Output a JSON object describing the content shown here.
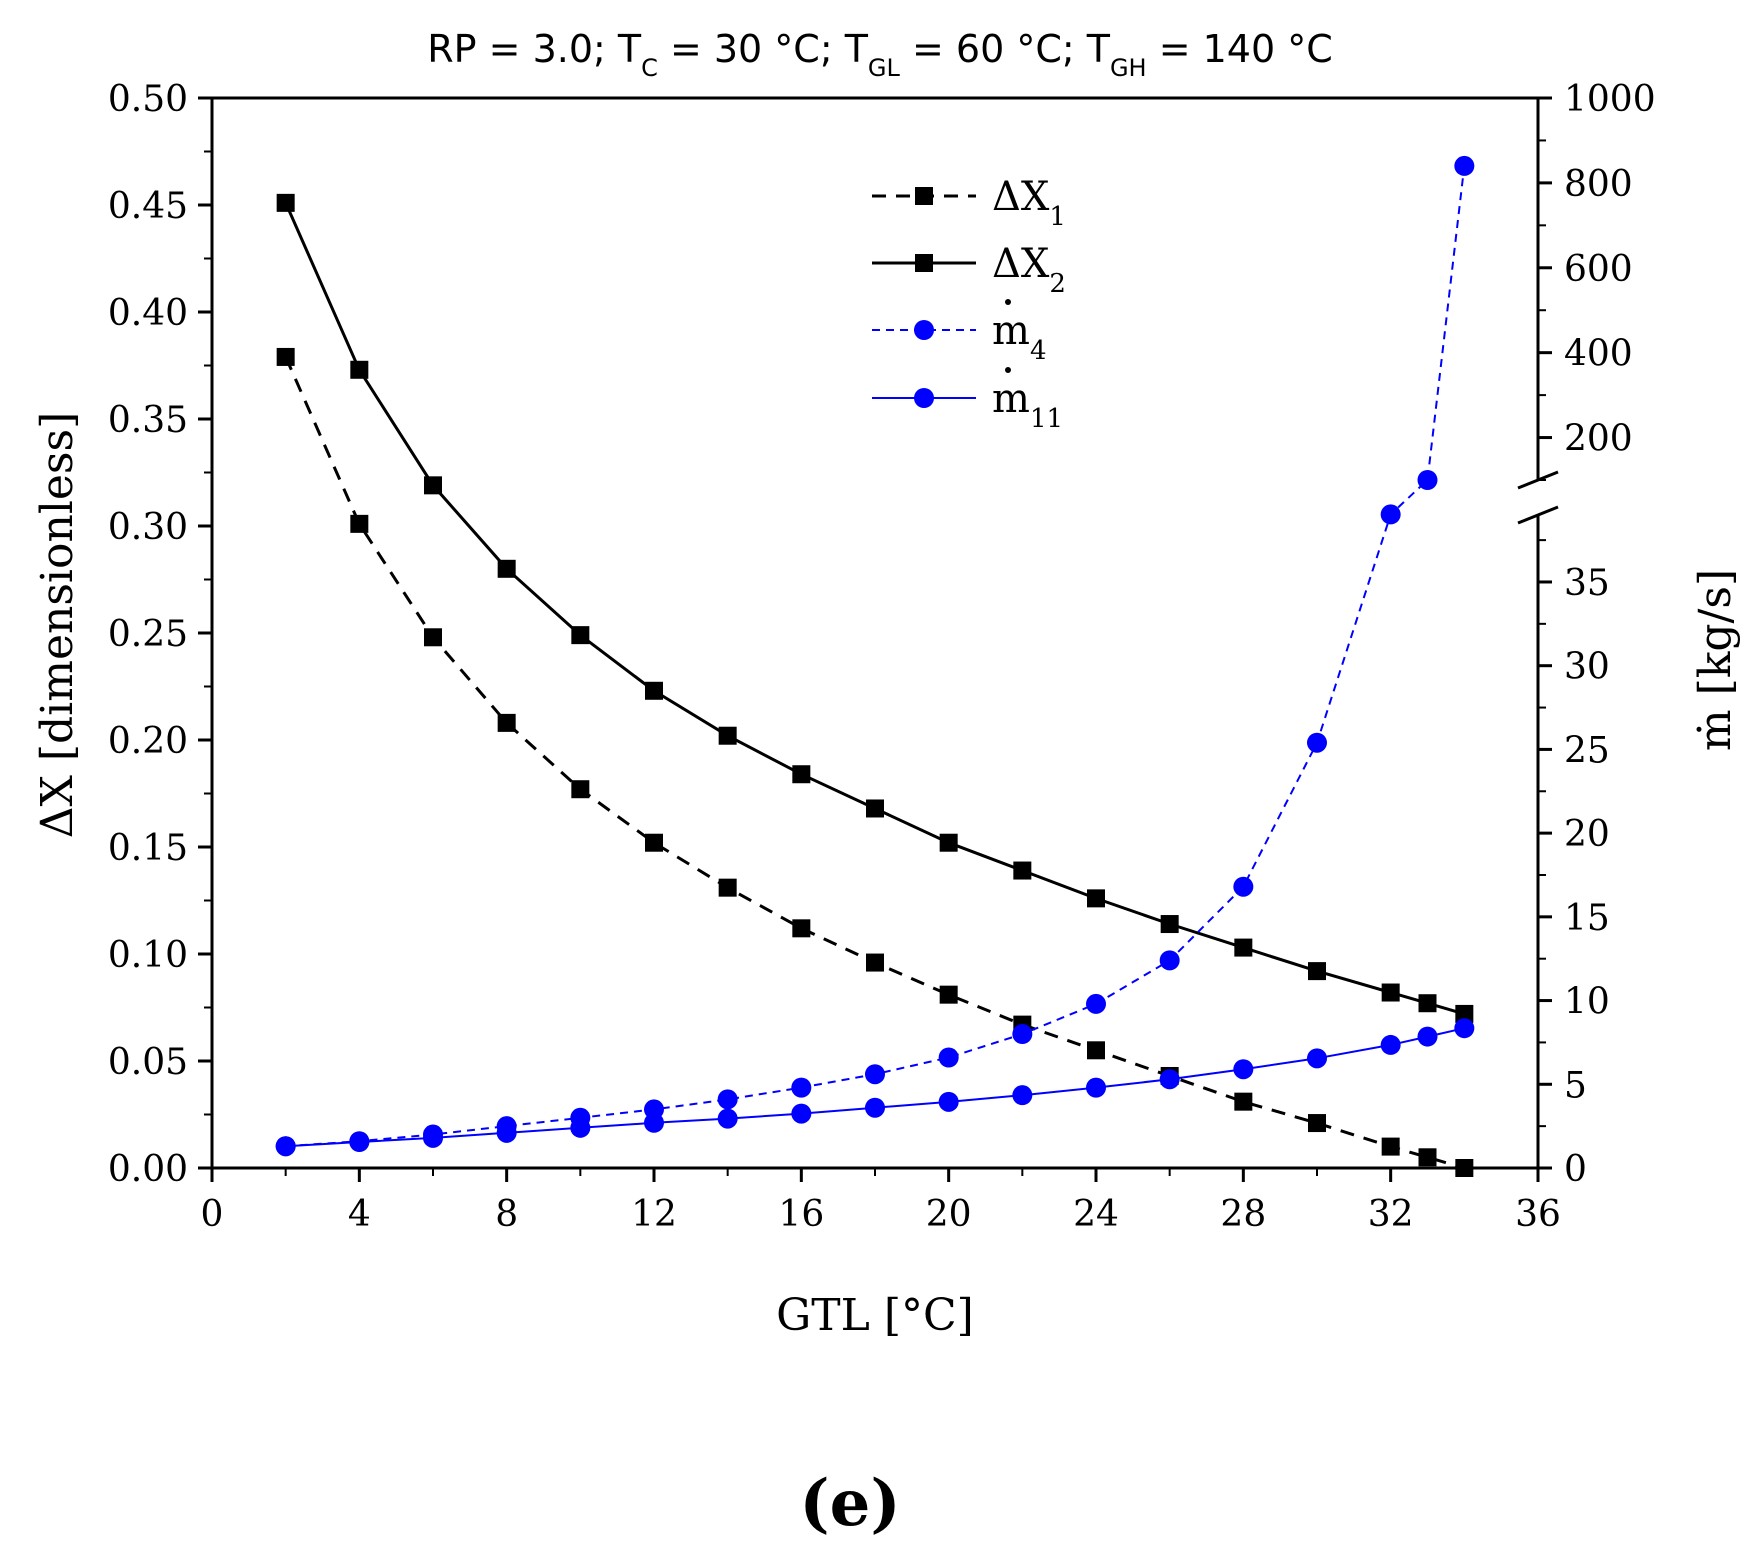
{
  "chart_data": {
    "type": "line",
    "title": {
      "parts": [
        {
          "text": "RP = 3.0; T",
          "sub": "C",
          "after": " = 30 °C; T"
        },
        {
          "text": "",
          "sub": "GL",
          "after": " = 60 °C; T"
        },
        {
          "text": "",
          "sub": "GH",
          "after": " = 140 °C"
        }
      ],
      "plain": "RP = 3.0; TC = 30 °C; TGL = 60 °C; TGH = 140 °C"
    },
    "xlabel": "GTL [°C]",
    "ylabel_left": "ΔX [dimensionless]",
    "ylabel_right": "ṁ [kg/s]",
    "panel_label": "(e)",
    "xlim": [
      0,
      36
    ],
    "xticks": [
      "0",
      "4",
      "8",
      "12",
      "16",
      "20",
      "24",
      "28",
      "32",
      "36"
    ],
    "xtick_values": [
      0,
      4,
      8,
      12,
      16,
      20,
      24,
      28,
      32,
      36
    ],
    "ylim_left": [
      0,
      0.5
    ],
    "yticks_left": [
      "0.00",
      "0.05",
      "0.10",
      "0.15",
      "0.20",
      "0.25",
      "0.30",
      "0.35",
      "0.40",
      "0.45",
      "0.50"
    ],
    "ytick_values_left": [
      0,
      0.05,
      0.1,
      0.15,
      0.2,
      0.25,
      0.3,
      0.35,
      0.4,
      0.45,
      0.5
    ],
    "right_axis_broken": true,
    "ylim_right_lower": [
      0,
      39
    ],
    "yticks_right_lower": [
      "0",
      "5",
      "10",
      "15",
      "20",
      "25",
      "30",
      "35"
    ],
    "ytick_values_right_lower": [
      0,
      5,
      10,
      15,
      20,
      25,
      30,
      35
    ],
    "ylim_right_upper": [
      100,
      1000
    ],
    "yticks_right_upper": [
      "200",
      "400",
      "600",
      "800",
      "1000"
    ],
    "ytick_values_right_upper": [
      200,
      400,
      600,
      800,
      1000
    ],
    "x": [
      2,
      4,
      6,
      8,
      10,
      12,
      14,
      16,
      18,
      20,
      22,
      24,
      26,
      28,
      30,
      32,
      33,
      34
    ],
    "series": [
      {
        "name": "ΔX1",
        "label_main": "ΔX",
        "label_sub": "1",
        "label_dot": false,
        "axis": "left",
        "color": "#000000",
        "marker": "square",
        "dash": "dashed",
        "values": [
          0.379,
          0.301,
          0.248,
          0.208,
          0.177,
          0.152,
          0.131,
          0.112,
          0.096,
          0.081,
          0.067,
          0.055,
          0.043,
          0.031,
          0.021,
          0.01,
          0.005,
          0.0
        ]
      },
      {
        "name": "ΔX2",
        "label_main": "ΔX",
        "label_sub": "2",
        "label_dot": false,
        "axis": "left",
        "color": "#000000",
        "marker": "square",
        "dash": "solid",
        "values": [
          0.451,
          0.373,
          0.319,
          0.28,
          0.249,
          0.223,
          0.202,
          0.184,
          0.168,
          0.152,
          0.139,
          0.126,
          0.114,
          0.103,
          0.092,
          0.082,
          0.077,
          0.072
        ]
      },
      {
        "name": "ṁ4",
        "label_main": "m",
        "label_sub": "4",
        "label_dot": true,
        "axis": "right",
        "color": "#0000ff",
        "marker": "circle",
        "dash": "dashed",
        "values": [
          1.3,
          1.6,
          2.0,
          2.5,
          3.0,
          3.5,
          4.1,
          4.8,
          5.6,
          6.6,
          8.0,
          9.8,
          12.4,
          16.8,
          25.4,
          40,
          100,
          840
        ]
      },
      {
        "name": "ṁ11",
        "label_main": "m",
        "label_sub": "11",
        "label_dot": true,
        "axis": "right",
        "color": "#0000ff",
        "marker": "circle",
        "dash": "solid",
        "values": [
          1.3,
          1.55,
          1.8,
          2.1,
          2.4,
          2.7,
          2.95,
          3.25,
          3.6,
          3.95,
          4.35,
          4.8,
          5.3,
          5.9,
          6.55,
          7.35,
          7.85,
          8.35
        ]
      }
    ],
    "legend": "top-center"
  }
}
